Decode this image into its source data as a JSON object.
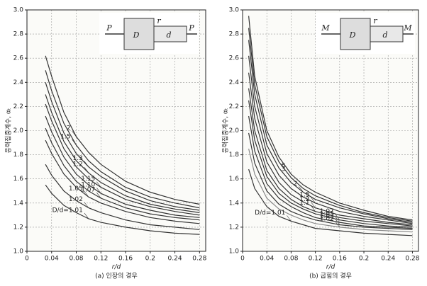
{
  "chart_data": [
    {
      "type": "line",
      "title": "(a) 인장의 경우",
      "x_label": "r/d",
      "y_label": "응력집중계수, αₜ",
      "inset_labels": [
        "P",
        "D",
        "r",
        "d",
        "P"
      ],
      "x": [
        0.03,
        0.04,
        0.06,
        0.08,
        0.1,
        0.12,
        0.16,
        0.2,
        0.24,
        0.28
      ],
      "xlim": [
        0,
        0.29
      ],
      "ylim": [
        1.0,
        3.0
      ],
      "xticks": [
        0,
        0.04,
        0.08,
        0.12,
        0.16,
        0.2,
        0.24,
        0.28
      ],
      "yticks": [
        {
          "value": 1.0,
          "label": "1.0"
        },
        1.2,
        1.4,
        1.6,
        1.8,
        {
          "value": 2.0,
          "label": "2.0"
        },
        2.2,
        2.4,
        2.6,
        2.8,
        {
          "value": 3.0,
          "label": "3.0"
        }
      ],
      "grid": true,
      "series": [
        {
          "name": "2",
          "color": "#333333",
          "values": [
            2.62,
            2.45,
            2.15,
            1.95,
            1.82,
            1.72,
            1.58,
            1.49,
            1.43,
            1.39
          ]
        },
        {
          "name": "1.5",
          "color": "#333333",
          "values": [
            2.5,
            2.33,
            2.06,
            1.88,
            1.75,
            1.66,
            1.53,
            1.45,
            1.4,
            1.36
          ]
        },
        {
          "name": "1.3",
          "color": "#333333",
          "values": [
            2.4,
            2.24,
            1.98,
            1.81,
            1.7,
            1.62,
            1.5,
            1.42,
            1.37,
            1.34
          ]
        },
        {
          "name": "1.2",
          "color": "#333333",
          "values": [
            2.3,
            2.15,
            1.91,
            1.75,
            1.65,
            1.57,
            1.46,
            1.39,
            1.35,
            1.32
          ]
        },
        {
          "name": "1.15",
          "color": "#333333",
          "values": [
            2.22,
            2.08,
            1.85,
            1.7,
            1.6,
            1.53,
            1.43,
            1.37,
            1.33,
            1.3
          ]
        },
        {
          "name": "1.10",
          "color": "#333333",
          "values": [
            2.12,
            1.99,
            1.78,
            1.64,
            1.55,
            1.48,
            1.39,
            1.34,
            1.3,
            1.28
          ]
        },
        {
          "name": "1.07",
          "color": "#333333",
          "values": [
            2.02,
            1.9,
            1.71,
            1.58,
            1.5,
            1.44,
            1.36,
            1.31,
            1.28,
            1.26
          ]
        },
        {
          "name": "1.05",
          "color": "#333333",
          "values": [
            1.92,
            1.81,
            1.64,
            1.53,
            1.45,
            1.4,
            1.33,
            1.28,
            1.25,
            1.23
          ]
        },
        {
          "name": "1.02",
          "color": "#333333",
          "values": [
            1.72,
            1.63,
            1.5,
            1.42,
            1.36,
            1.32,
            1.26,
            1.22,
            1.2,
            1.18
          ]
        },
        {
          "name": "D/d=1.01",
          "color": "#333333",
          "values": [
            1.55,
            1.48,
            1.38,
            1.32,
            1.27,
            1.24,
            1.2,
            1.17,
            1.15,
            1.14
          ]
        }
      ]
    },
    {
      "type": "line",
      "title": "(b) 굽힘의 경우",
      "x_label": "r/d",
      "y_label": "응력집중계수, αₜ",
      "inset_labels": [
        "M",
        "D",
        "r",
        "d",
        "M"
      ],
      "x": [
        0.01,
        0.02,
        0.04,
        0.06,
        0.08,
        0.1,
        0.12,
        0.16,
        0.2,
        0.24,
        0.28
      ],
      "xlim": [
        0,
        0.29
      ],
      "ylim": [
        1.0,
        3.0
      ],
      "xticks": [
        0,
        0.04,
        0.08,
        0.12,
        0.16,
        0.2,
        0.24,
        0.28
      ],
      "yticks": [
        {
          "value": 1.0,
          "label": "1.0"
        },
        1.2,
        1.4,
        1.6,
        1.8,
        {
          "value": 2.0,
          "label": "2.0"
        },
        2.2,
        2.4,
        2.6,
        2.8,
        {
          "value": 3.0,
          "label": "3.0"
        }
      ],
      "grid": true,
      "series": [
        {
          "name": "6",
          "color": "#333333",
          "values": [
            2.95,
            2.45,
            2.0,
            1.78,
            1.64,
            1.55,
            1.49,
            1.4,
            1.34,
            1.29,
            1.26
          ]
        },
        {
          "name": "3",
          "color": "#333333",
          "values": [
            2.85,
            2.38,
            1.95,
            1.74,
            1.61,
            1.52,
            1.46,
            1.38,
            1.32,
            1.28,
            1.25
          ]
        },
        {
          "name": "2",
          "color": "#333333",
          "values": [
            2.75,
            2.3,
            1.88,
            1.69,
            1.57,
            1.49,
            1.43,
            1.36,
            1.31,
            1.27,
            1.24
          ]
        },
        {
          "name": "1.5",
          "color": "#333333",
          "values": [
            2.62,
            2.2,
            1.81,
            1.63,
            1.52,
            1.45,
            1.4,
            1.33,
            1.29,
            1.26,
            1.23
          ]
        },
        {
          "name": "1.2",
          "color": "#333333",
          "values": [
            2.48,
            2.1,
            1.74,
            1.57,
            1.47,
            1.41,
            1.36,
            1.3,
            1.27,
            1.24,
            1.22
          ]
        },
        {
          "name": "1.1",
          "color": "#333333",
          "values": [
            2.35,
            2.0,
            1.67,
            1.52,
            1.43,
            1.37,
            1.33,
            1.28,
            1.25,
            1.23,
            1.21
          ]
        },
        {
          "name": "1.07",
          "color": "#333333",
          "values": [
            2.25,
            1.92,
            1.62,
            1.48,
            1.4,
            1.35,
            1.31,
            1.26,
            1.23,
            1.21,
            1.2
          ]
        },
        {
          "name": "1.05",
          "color": "#333333",
          "values": [
            2.12,
            1.83,
            1.56,
            1.44,
            1.37,
            1.32,
            1.28,
            1.24,
            1.21,
            1.2,
            1.19
          ]
        },
        {
          "name": "1.03",
          "color": "#333333",
          "values": [
            1.98,
            1.73,
            1.5,
            1.39,
            1.33,
            1.29,
            1.26,
            1.22,
            1.2,
            1.19,
            1.18
          ]
        },
        {
          "name": "1.02",
          "color": "#888888",
          "values": [
            1.85,
            1.64,
            1.44,
            1.35,
            1.3,
            1.26,
            1.23,
            1.2,
            1.18,
            1.17,
            1.16
          ]
        },
        {
          "name": "D/d=1.01",
          "color": "#333333",
          "values": [
            1.68,
            1.52,
            1.37,
            1.29,
            1.25,
            1.22,
            1.19,
            1.17,
            1.15,
            1.14,
            1.13
          ]
        }
      ]
    }
  ]
}
